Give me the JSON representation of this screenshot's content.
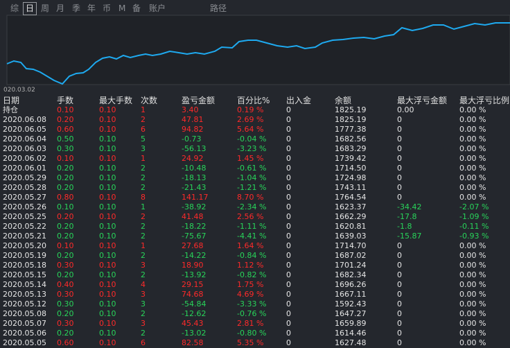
{
  "tabs": [
    "综",
    "日",
    "周",
    "月",
    "季",
    "年",
    "币",
    "M",
    "备",
    "账户",
    "路径"
  ],
  "selected_tab": 1,
  "chart_label": "020.03.02",
  "table": {
    "header": [
      "日期",
      "手数",
      "最大手数",
      "次数",
      "盈亏金额",
      "百分比%",
      "出入金",
      "余额",
      "最大浮亏金额",
      "最大浮亏比例"
    ],
    "rows": [
      [
        "持仓",
        "0.10",
        "0.10",
        "1",
        "3.40",
        "0.19 %",
        "0",
        "1825.19",
        "0.00",
        "0.00 %"
      ],
      [
        "2020.06.08",
        "0.20",
        "0.10",
        "2",
        "47.81",
        "2.69 %",
        "0",
        "1825.19",
        "0",
        "0.00 %"
      ],
      [
        "2020.06.05",
        "0.60",
        "0.10",
        "6",
        "94.82",
        "5.64 %",
        "0",
        "1777.38",
        "0",
        "0.00 %"
      ],
      [
        "2020.06.04",
        "0.50",
        "0.10",
        "5",
        "-0.73",
        "-0.04 %",
        "0",
        "1682.56",
        "0",
        "0.00 %"
      ],
      [
        "2020.06.03",
        "0.30",
        "0.10",
        "3",
        "-56.13",
        "-3.23 %",
        "0",
        "1683.29",
        "0",
        "0.00 %"
      ],
      [
        "2020.06.02",
        "0.10",
        "0.10",
        "1",
        "24.92",
        "1.45 %",
        "0",
        "1739.42",
        "0",
        "0.00 %"
      ],
      [
        "2020.06.01",
        "0.20",
        "0.10",
        "2",
        "-10.48",
        "-0.61 %",
        "0",
        "1714.50",
        "0",
        "0.00 %"
      ],
      [
        "2020.05.29",
        "0.20",
        "0.10",
        "2",
        "-18.13",
        "-1.04 %",
        "0",
        "1724.98",
        "0",
        "0.00 %"
      ],
      [
        "2020.05.28",
        "0.20",
        "0.10",
        "2",
        "-21.43",
        "-1.21 %",
        "0",
        "1743.11",
        "0",
        "0.00 %"
      ],
      [
        "2020.05.27",
        "0.80",
        "0.10",
        "8",
        "141.17",
        "8.70 %",
        "0",
        "1764.54",
        "0",
        "0.00 %"
      ],
      [
        "2020.05.26",
        "0.10",
        "0.10",
        "1",
        "-38.92",
        "-2.34 %",
        "0",
        "1623.37",
        "-34.42",
        "-2.07 %"
      ],
      [
        "2020.05.25",
        "0.20",
        "0.10",
        "2",
        "41.48",
        "2.56 %",
        "0",
        "1662.29",
        "-17.8",
        "-1.09 %"
      ],
      [
        "2020.05.22",
        "0.20",
        "0.10",
        "2",
        "-18.22",
        "-1.11 %",
        "0",
        "1620.81",
        "-1.8",
        "-0.11 %"
      ],
      [
        "2020.05.21",
        "0.20",
        "0.10",
        "2",
        "-75.67",
        "-4.41 %",
        "0",
        "1639.03",
        "-15.87",
        "-0.93 %"
      ],
      [
        "2020.05.20",
        "0.10",
        "0.10",
        "1",
        "27.68",
        "1.64 %",
        "0",
        "1714.70",
        "0",
        "0.00 %"
      ],
      [
        "2020.05.19",
        "0.20",
        "0.10",
        "2",
        "-14.22",
        "-0.84 %",
        "0",
        "1687.02",
        "0",
        "0.00 %"
      ],
      [
        "2020.05.18",
        "0.30",
        "0.10",
        "3",
        "18.90",
        "1.12 %",
        "0",
        "1701.24",
        "0",
        "0.00 %"
      ],
      [
        "2020.05.15",
        "0.20",
        "0.10",
        "2",
        "-13.92",
        "-0.82 %",
        "0",
        "1682.34",
        "0",
        "0.00 %"
      ],
      [
        "2020.05.14",
        "0.40",
        "0.10",
        "4",
        "29.15",
        "1.75 %",
        "0",
        "1696.26",
        "0",
        "0.00 %"
      ],
      [
        "2020.05.13",
        "0.30",
        "0.10",
        "3",
        "74.68",
        "4.69 %",
        "0",
        "1667.11",
        "0",
        "0.00 %"
      ],
      [
        "2020.05.12",
        "0.30",
        "0.10",
        "3",
        "-54.84",
        "-3.33 %",
        "0",
        "1592.43",
        "0",
        "0.00 %"
      ],
      [
        "2020.05.08",
        "0.20",
        "0.10",
        "2",
        "-12.62",
        "-0.76 %",
        "0",
        "1647.27",
        "0",
        "0.00 %"
      ],
      [
        "2020.05.07",
        "0.30",
        "0.10",
        "3",
        "45.43",
        "2.81 %",
        "0",
        "1659.89",
        "0",
        "0.00 %"
      ],
      [
        "2020.05.06",
        "0.20",
        "0.10",
        "2",
        "-13.02",
        "-0.80 %",
        "0",
        "1614.46",
        "0",
        "0.00 %"
      ],
      [
        "2020.05.05",
        "0.60",
        "0.10",
        "6",
        "82.58",
        "5.35 %",
        "0",
        "1627.48",
        "0",
        "0.00 %"
      ]
    ]
  }
}
